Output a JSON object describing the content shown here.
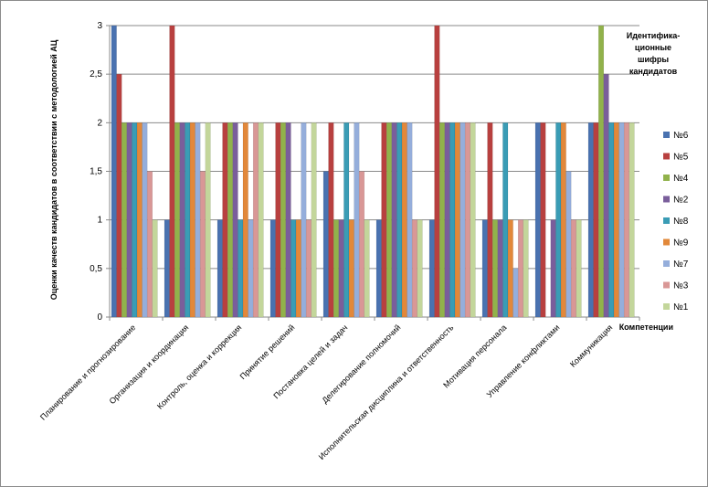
{
  "chart_data": {
    "type": "bar",
    "ylabel": "Оценки качеств кандидатов в соответствии с методологией АЦ",
    "xlabel": "Компетенции",
    "legend_title": [
      "Идентифика-",
      "ционные",
      "шифры",
      "кандидатов"
    ],
    "legend_position": "right",
    "grid": true,
    "ylim": [
      0,
      3
    ],
    "yticks": [
      "0",
      "0,5",
      "1",
      "1,5",
      "2",
      "2,5",
      "3"
    ],
    "ytick_values": [
      0,
      0.5,
      1,
      1.5,
      2,
      2.5,
      3
    ],
    "categories": [
      "Планирование и прогнозирование",
      "Организация и координация",
      "Контроль, оценка и коррекция",
      "Принятие решений",
      "Постановка целей и задач",
      "Делегирование полномочий",
      "Исполнительская дисциплина и ответственность",
      "Мотивация персонала",
      "Управление конфликтами",
      "Коммуникация"
    ],
    "series": [
      {
        "name": "№6",
        "color": "#4a72b0",
        "values": [
          3,
          1,
          1,
          1,
          1.5,
          1,
          1,
          1,
          2,
          2
        ]
      },
      {
        "name": "№5",
        "color": "#b8403f",
        "values": [
          2.5,
          3,
          2,
          2,
          2,
          2,
          3,
          2,
          2,
          2
        ]
      },
      {
        "name": "№4",
        "color": "#91b24b",
        "values": [
          2,
          2,
          2,
          2,
          1,
          2,
          2,
          1,
          0,
          3
        ]
      },
      {
        "name": "№2",
        "color": "#7a5e9b",
        "values": [
          2,
          2,
          2,
          2,
          1,
          2,
          2,
          1,
          1,
          2.5
        ]
      },
      {
        "name": "№8",
        "color": "#3a9cb5",
        "values": [
          2,
          2,
          1,
          1,
          2,
          2,
          2,
          2,
          2,
          2
        ]
      },
      {
        "name": "№9",
        "color": "#e2883a",
        "values": [
          2,
          2,
          2,
          1,
          1,
          2,
          2,
          1,
          2,
          2
        ]
      },
      {
        "name": "№7",
        "color": "#95aedb",
        "values": [
          2,
          2,
          1,
          2,
          2,
          2,
          2,
          0.5,
          1.5,
          2
        ]
      },
      {
        "name": "№3",
        "color": "#d99796",
        "values": [
          1.5,
          1.5,
          2,
          1,
          1.5,
          1,
          2,
          1,
          1,
          2
        ]
      },
      {
        "name": "№1",
        "color": "#c3d69b",
        "values": [
          1,
          2,
          2,
          2,
          1,
          1,
          2,
          1,
          1,
          2
        ]
      }
    ]
  }
}
